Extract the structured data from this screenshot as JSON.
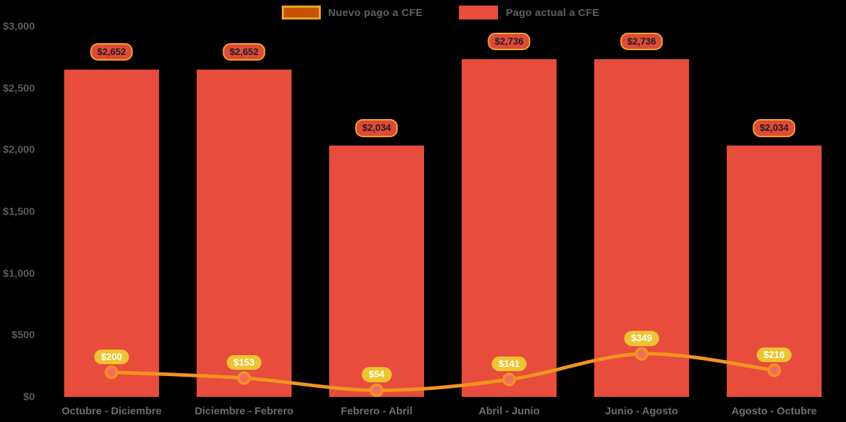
{
  "background_color": "#000000",
  "legend": {
    "items": [
      {
        "label": "Nuevo pago a CFE",
        "swatch_fill": "#c45400",
        "swatch_border": "#f0a622"
      },
      {
        "label": "Pago actual a CFE",
        "swatch_fill": "#e74c3c",
        "swatch_border": "#e74c3c"
      }
    ],
    "text_color": "#5f5f5f"
  },
  "chart_data": {
    "type": "bar",
    "title": "",
    "xlabel": "",
    "ylabel": "",
    "categories": [
      "Octubre - Diciembre",
      "Diciembre - Febrero",
      "Febrero - Abril",
      "Abril - Junio",
      "Junio - Agosto",
      "Agosto - Octubre"
    ],
    "series": [
      {
        "name": "Nuevo pago a CFE",
        "type": "line",
        "color": "#f3941e",
        "marker_fill": "#f26d5f",
        "marker_stroke": "#f3941e",
        "values": [
          200,
          153,
          54,
          141,
          349,
          216
        ],
        "labels": [
          "$200",
          "$153",
          "$54",
          "$141",
          "$349",
          "$216"
        ],
        "label_bg": "#eec430",
        "label_text_color": "#ffffff"
      },
      {
        "name": "Pago actual a CFE",
        "type": "bar",
        "color": "#e74c3c",
        "values": [
          2652,
          2652,
          2034,
          2736,
          2736,
          2034
        ],
        "labels": [
          "$2,652",
          "$2,652",
          "$2,034",
          "$2,736",
          "$2,736",
          "$2,034"
        ],
        "label_bg": "#e04a38",
        "label_border": "#f0a622",
        "label_text_color": "#1f1f1f"
      }
    ],
    "y_axis": {
      "ticks": [
        {
          "value": 0,
          "label": "$0"
        },
        {
          "value": 500,
          "label": "$500"
        },
        {
          "value": 1000,
          "label": "$1,000"
        },
        {
          "value": 1500,
          "label": "$1,500"
        },
        {
          "value": 2000,
          "label": "$2,000"
        },
        {
          "value": 2500,
          "label": "$2,500"
        },
        {
          "value": 3000,
          "label": "$3,000"
        }
      ]
    },
    "ylim": [
      0,
      3000
    ],
    "grid": false,
    "legend_position": "top-center"
  }
}
